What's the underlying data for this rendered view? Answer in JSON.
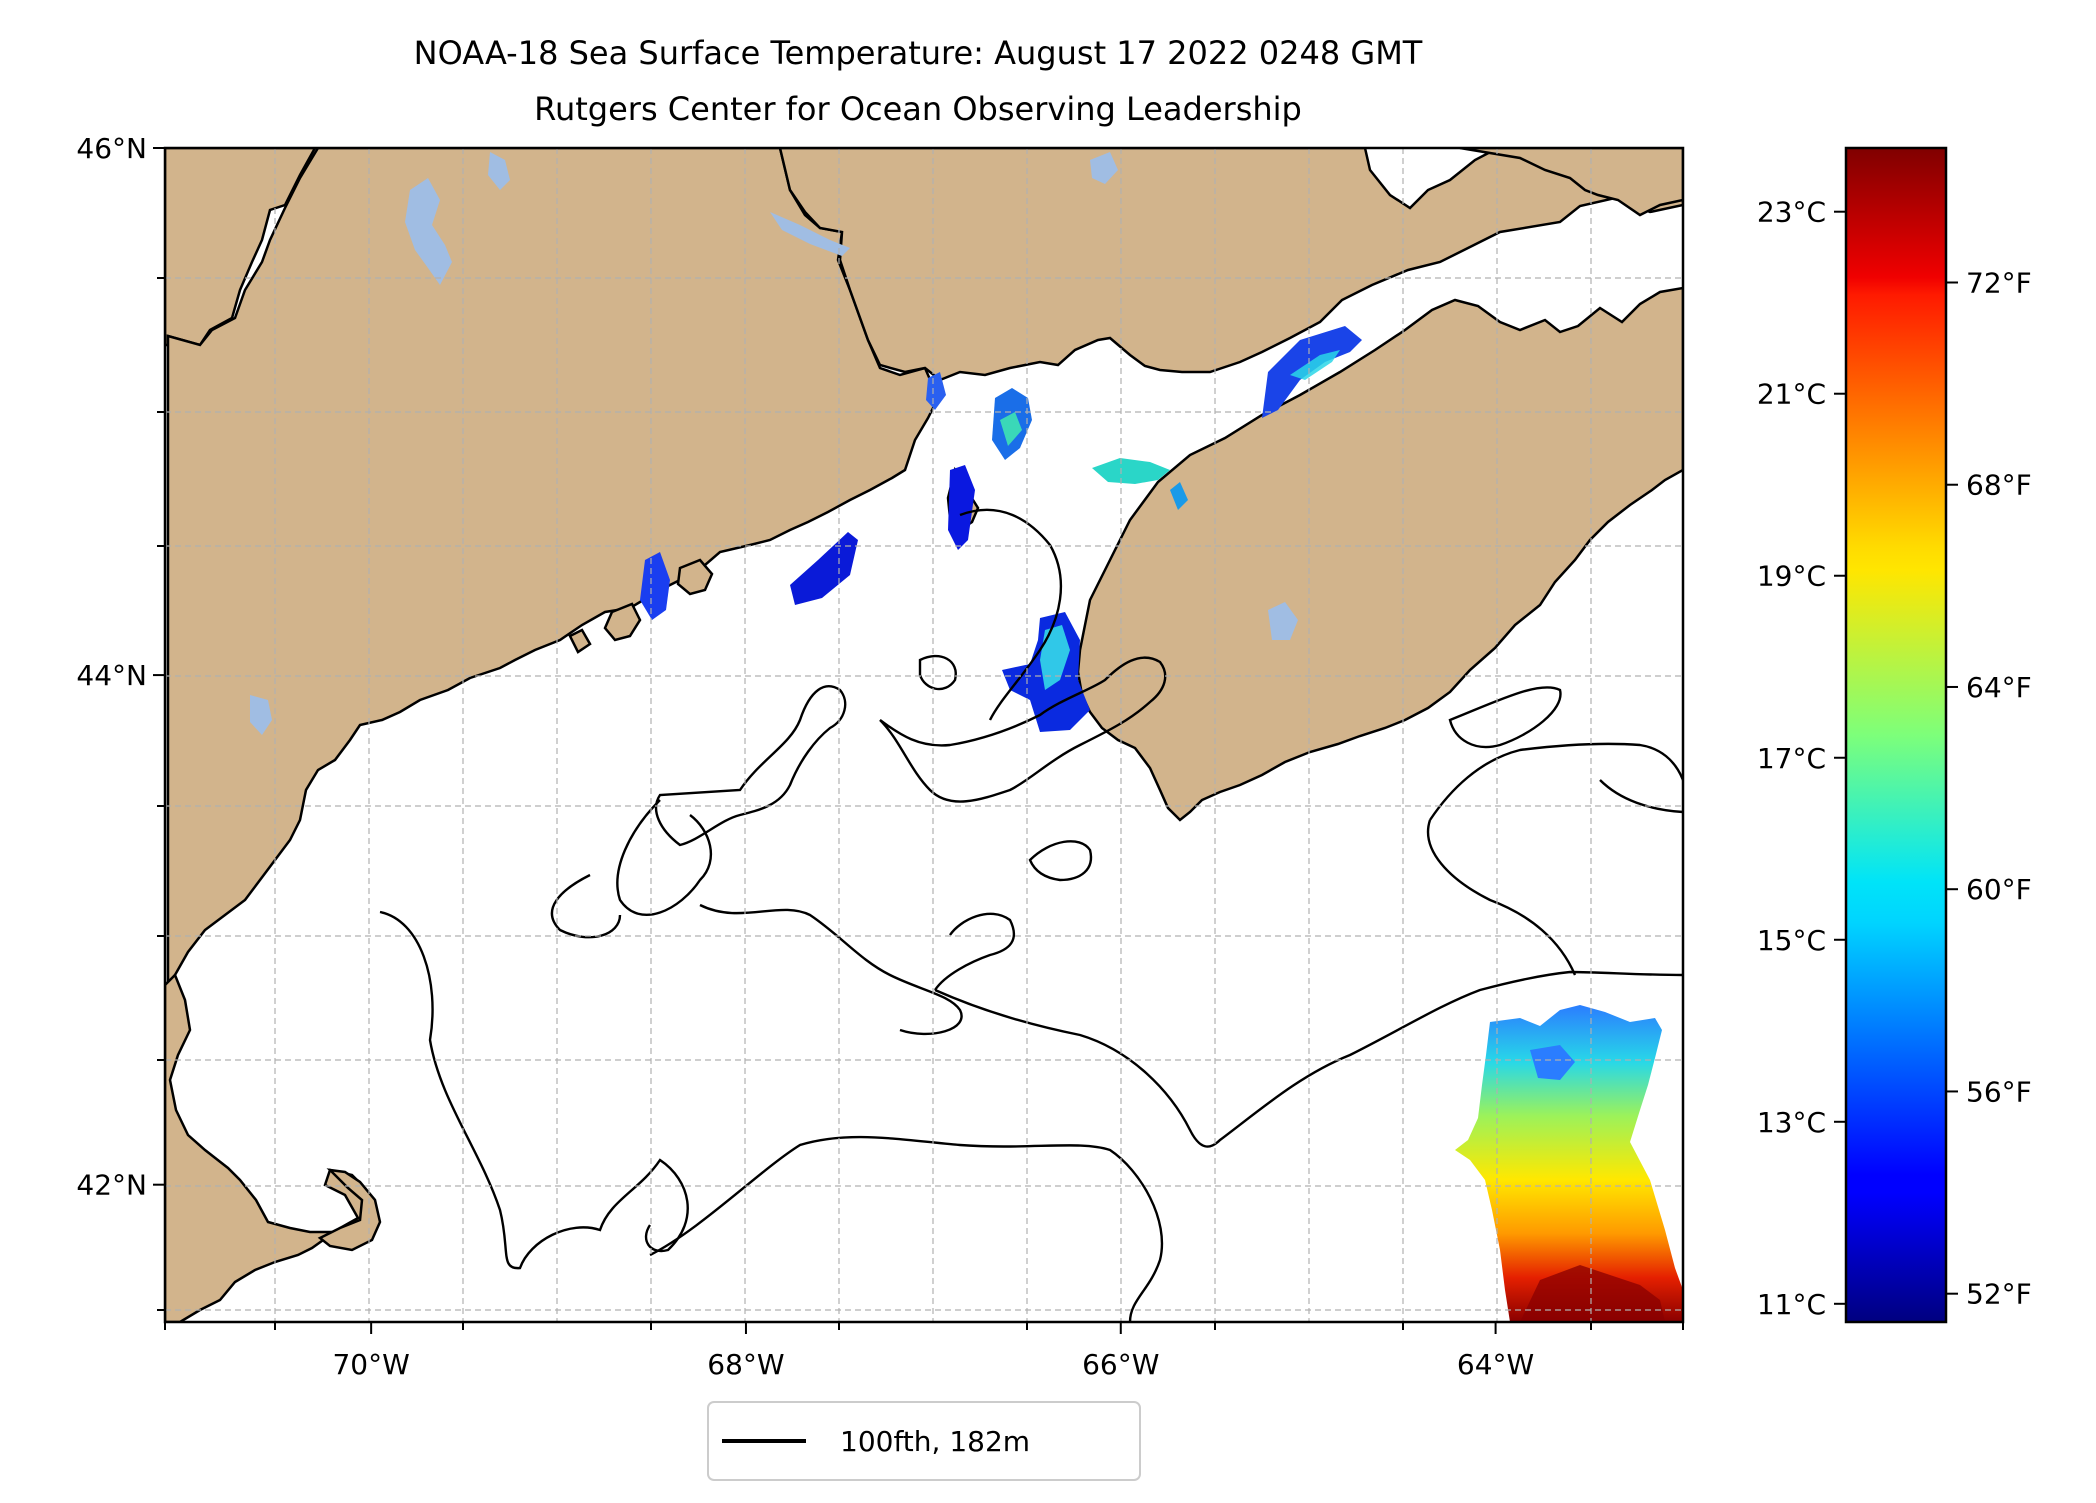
{
  "title": {
    "line1": "NOAA-18 Sea Surface Temperature: August 17 2022 0248 GMT",
    "line2": "Rutgers Center for Ocean Observing Leadership"
  },
  "map": {
    "lon_range": [
      -71.1,
      -63.0
    ],
    "lat_range": [
      41.45,
      46.0
    ],
    "lon_ticks": [
      {
        "value": -70,
        "label": "70°W"
      },
      {
        "value": -68,
        "label": "68°W"
      },
      {
        "value": -66,
        "label": "66°W"
      },
      {
        "value": -64,
        "label": "64°W"
      }
    ],
    "lat_ticks": [
      {
        "value": 46,
        "label": "46°N"
      },
      {
        "value": 44,
        "label": "44°N"
      },
      {
        "value": 42,
        "label": "42°N"
      }
    ],
    "grid": true,
    "colors": {
      "land": "#d2b48c",
      "lakes": "#a0bde3",
      "coast": "#000000",
      "gridline": "#b0b0b0"
    }
  },
  "legend": {
    "label": "100fth, 182m",
    "placement": "bottom-center, below map"
  },
  "colorbar": {
    "colormap": "jet",
    "celsius_range": [
      10.8,
      23.7
    ],
    "celsius_ticks": [
      {
        "value": 23,
        "label": "23°C"
      },
      {
        "value": 21,
        "label": "21°C"
      },
      {
        "value": 19,
        "label": "19°C"
      },
      {
        "value": 17,
        "label": "17°C"
      },
      {
        "value": 15,
        "label": "15°C"
      },
      {
        "value": 13,
        "label": "13°C"
      },
      {
        "value": 11,
        "label": "11°C"
      }
    ],
    "fahrenheit_ticks": [
      {
        "value": 72,
        "label": "72°F"
      },
      {
        "value": 68,
        "label": "68°F"
      },
      {
        "value": 64,
        "label": "64°F"
      },
      {
        "value": 60,
        "label": "60°F"
      },
      {
        "value": 56,
        "label": "56°F"
      },
      {
        "value": 52,
        "label": "52°F"
      }
    ]
  }
}
